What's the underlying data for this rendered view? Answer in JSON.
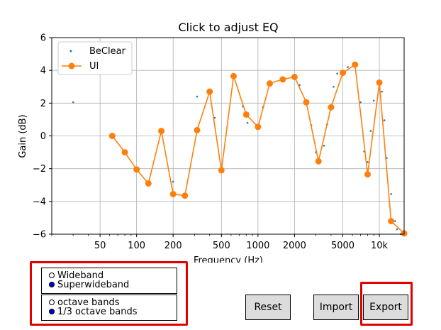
{
  "chart_data": {
    "type": "line",
    "title": "Click to adjust EQ",
    "xlabel": "Frequency (Hz)",
    "ylabel": "Gain (dB)",
    "xscale": "log",
    "xlim": [
      20,
      16000
    ],
    "ylim": [
      -6,
      6
    ],
    "grid": true,
    "legend_position": "top-left",
    "x_ticks": [
      50,
      100,
      200,
      500,
      1000,
      2000,
      5000,
      10000
    ],
    "x_tick_labels": [
      "50",
      "100",
      "200",
      "500",
      "1000",
      "2000",
      "5000",
      "10k"
    ],
    "y_ticks": [
      -6,
      -4,
      -2,
      0,
      2,
      4,
      6
    ],
    "y_tick_labels": [
      "−6",
      "−4",
      "−2",
      "0",
      "2",
      "4",
      "6"
    ],
    "series": [
      {
        "name": "BeClear",
        "style": "points",
        "color": "#1f77b4",
        "x": [
          30,
          63,
          80,
          100,
          125,
          160,
          200,
          250,
          315,
          400,
          440,
          500,
          630,
          750,
          820,
          1000,
          1100,
          1250,
          1600,
          2000,
          2200,
          2500,
          2750,
          3000,
          3500,
          3700,
          4200,
          4500,
          5000,
          5500,
          6300,
          7000,
          7500,
          8000,
          8500,
          9000,
          10000,
          10500,
          11000,
          11500,
          12500,
          13500,
          14000,
          15000
        ],
        "y": [
          2.05,
          0.0,
          -1.0,
          -2.05,
          -2.9,
          0.3,
          -2.8,
          -3.65,
          2.4,
          2.7,
          1.1,
          -2.1,
          3.6,
          1.8,
          0.8,
          0.6,
          1.75,
          3.2,
          3.45,
          3.6,
          3.1,
          2.05,
          0.65,
          -1.0,
          -0.6,
          0.7,
          3.0,
          3.8,
          3.9,
          4.2,
          4.35,
          2.05,
          -0.95,
          -1.6,
          0.3,
          2.15,
          3.25,
          2.7,
          0.95,
          -1.35,
          -3.55,
          -5.2,
          -5.7,
          -6.0
        ]
      },
      {
        "name": "UI",
        "style": "line-markers",
        "color": "#ff7f0e",
        "x": [
          63,
          80,
          100,
          125,
          160,
          200,
          250,
          315,
          400,
          500,
          630,
          800,
          1000,
          1250,
          1600,
          2000,
          2500,
          3150,
          4000,
          5000,
          6300,
          8000,
          10000,
          12500,
          16000
        ],
        "y": [
          0.0,
          -1.0,
          -2.05,
          -2.9,
          0.3,
          -3.55,
          -3.65,
          0.35,
          2.7,
          -2.1,
          3.65,
          1.3,
          0.55,
          3.2,
          3.45,
          3.6,
          2.05,
          -1.55,
          1.75,
          3.85,
          4.35,
          -2.35,
          3.25,
          -5.2,
          -5.95
        ]
      }
    ]
  },
  "radio_groups": {
    "bandwidth": {
      "options": [
        "Wideband",
        "Superwideband"
      ],
      "selected": "Superwideband"
    },
    "resolution": {
      "options": [
        "octave bands",
        "1/3 octave bands"
      ],
      "selected": "1/3 octave bands"
    }
  },
  "buttons": {
    "reset": "Reset",
    "import": "Import",
    "export": "Export"
  },
  "colors": {
    "highlight": "#e00000",
    "radio_selected": "#0000cc",
    "button_bg": "#dcdcdc"
  }
}
